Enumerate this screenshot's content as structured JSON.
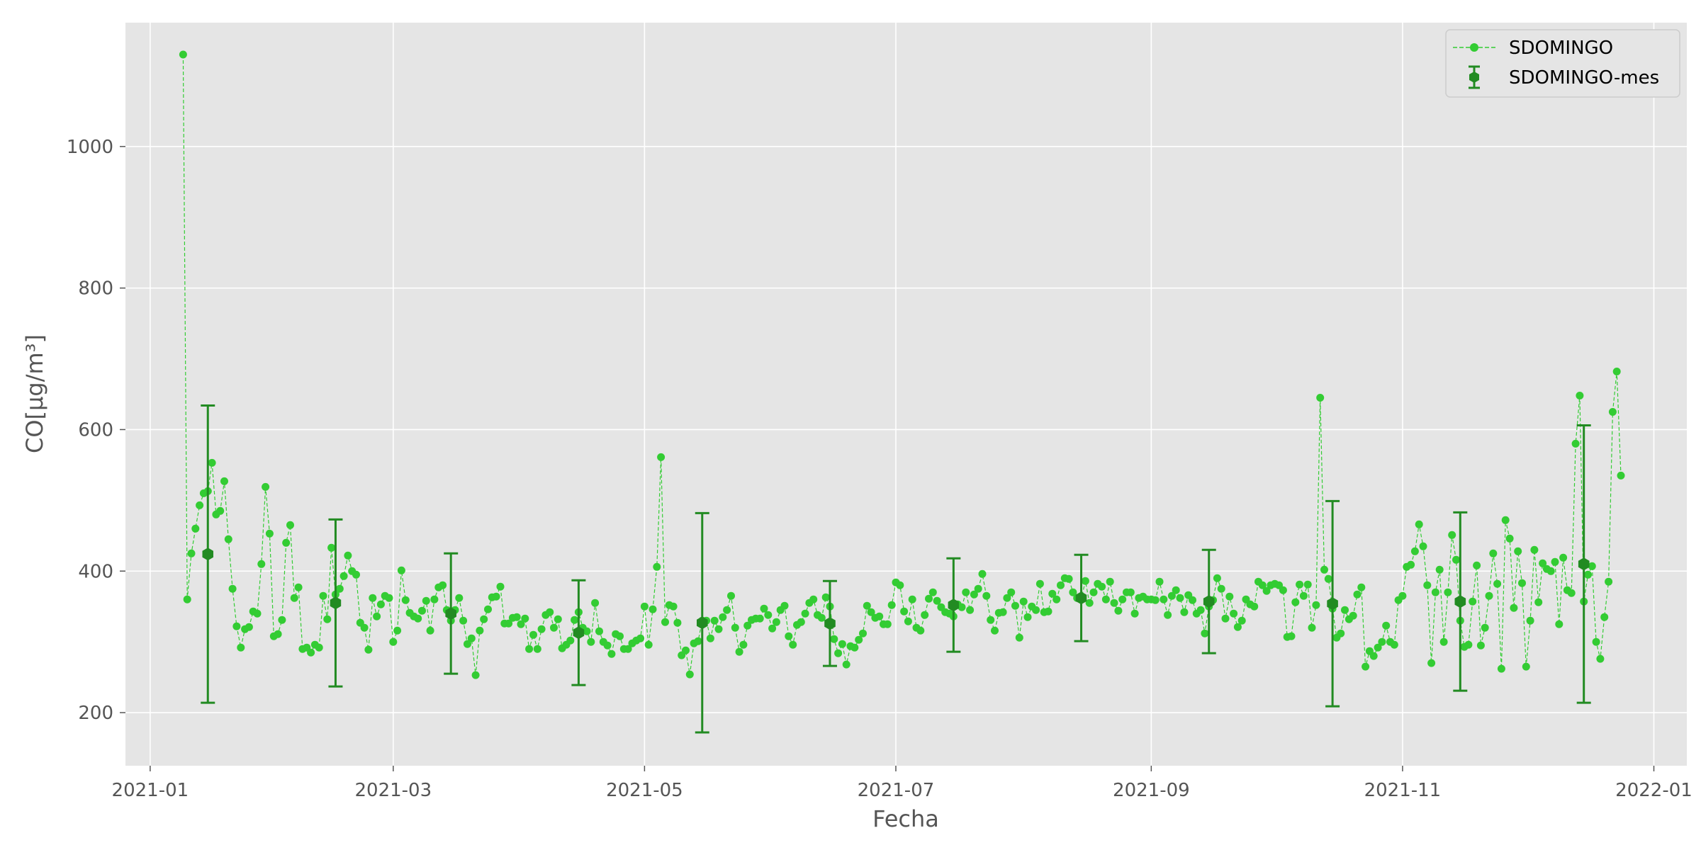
{
  "chart_data": {
    "type": "line",
    "title": "",
    "xlabel": "Fecha",
    "ylabel": "CO[μg/m³]",
    "xlim": [
      "2020-12-26",
      "2022-01-09"
    ],
    "ylim": [
      125,
      1175
    ],
    "x_ticks": [
      "2021-01",
      "2021-03",
      "2021-05",
      "2021-07",
      "2021-09",
      "2021-11",
      "2022-01"
    ],
    "y_ticks": [
      200,
      400,
      600,
      800,
      1000
    ],
    "grid": true,
    "legend_position": "top-right",
    "colors": {
      "daily": "#33cc33",
      "monthly": "#228b22",
      "plot_bg": "#e5e5e5",
      "grid": "#ffffff"
    },
    "series": [
      {
        "name": "SDOMINGO",
        "style": "dashed-line-with-dots",
        "start_date": "2021-01-09",
        "values": [
          1130,
          360,
          425,
          460,
          493,
          510,
          513,
          553,
          480,
          485,
          527,
          445,
          375,
          322,
          292,
          318,
          321,
          343,
          340,
          410,
          519,
          453,
          308,
          311,
          331,
          440,
          465,
          362,
          377,
          290,
          292,
          285,
          296,
          292,
          365,
          332,
          433,
          367,
          375,
          393,
          422,
          400,
          395,
          327,
          320,
          289,
          362,
          336,
          353,
          365,
          362,
          300,
          316,
          401,
          359,
          341,
          336,
          333,
          344,
          358,
          316,
          360,
          377,
          380,
          345,
          330,
          345,
          362,
          330,
          297,
          305,
          253,
          316,
          332,
          346,
          363,
          364,
          378,
          326,
          326,
          334,
          335,
          325,
          333,
          290,
          310,
          290,
          318,
          338,
          342,
          320,
          332,
          291,
          296,
          302,
          331,
          342,
          320,
          315,
          300,
          355,
          315,
          300,
          295,
          283,
          311,
          308,
          290,
          290,
          298,
          302,
          305,
          350,
          296,
          346,
          406,
          561,
          328,
          352,
          350,
          327,
          281,
          288,
          254,
          298,
          301,
          330,
          330,
          305,
          330,
          318,
          335,
          345,
          365,
          320,
          286,
          296,
          323,
          331,
          333,
          333,
          347,
          338,
          319,
          328,
          345,
          351,
          308,
          296,
          324,
          328,
          340,
          355,
          360,
          338,
          334,
          363,
          350,
          304,
          284,
          297,
          268,
          294,
          292,
          303,
          312,
          351,
          342,
          334,
          336,
          325,
          325,
          352,
          384,
          380,
          343,
          329,
          360,
          320,
          316,
          338,
          361,
          370,
          358,
          349,
          342,
          340,
          336,
          353,
          349,
          370,
          345,
          367,
          375,
          396,
          365,
          331,
          316,
          341,
          342,
          362,
          370,
          351,
          306,
          357,
          335,
          350,
          345,
          382,
          342,
          343,
          368,
          360,
          380,
          390,
          389,
          370,
          362,
          360,
          386,
          355,
          370,
          382,
          378,
          360,
          385,
          355,
          344,
          360,
          370,
          370,
          340,
          362,
          364,
          360,
          360,
          359,
          385,
          360,
          338,
          365,
          373,
          362,
          342,
          366,
          359,
          340,
          345,
          312,
          350,
          359,
          390,
          375,
          333,
          364,
          340,
          321,
          330,
          360,
          353,
          350,
          385,
          380,
          372,
          380,
          382,
          380,
          373,
          307,
          308,
          356,
          381,
          365,
          381,
          320,
          352,
          645,
          402,
          389,
          347,
          306,
          312,
          345,
          332,
          337,
          367,
          377,
          265,
          287,
          280,
          292,
          300,
          323,
          300,
          296,
          359,
          365,
          406,
          409,
          428,
          466,
          435,
          380,
          270,
          370,
          402,
          300,
          370,
          451,
          416,
          330,
          293,
          296,
          357,
          408,
          295,
          320,
          365,
          425,
          382,
          262,
          472,
          446,
          348,
          428,
          383,
          265,
          330,
          430,
          356,
          411,
          403,
          400,
          413,
          325,
          419,
          373,
          369,
          580,
          648,
          357,
          395,
          407,
          300,
          276,
          335,
          385,
          625,
          682,
          535
        ]
      },
      {
        "name": "SDOMINGO-mes",
        "style": "hexagon-with-errorbars",
        "dates": [
          "2021-01-15",
          "2021-02-15",
          "2021-03-15",
          "2021-04-15",
          "2021-05-15",
          "2021-06-15",
          "2021-07-15",
          "2021-08-15",
          "2021-09-15",
          "2021-10-15",
          "2021-11-15",
          "2021-12-15"
        ],
        "values": [
          424,
          355,
          340,
          313,
          327,
          326,
          352,
          362,
          357,
          354,
          357,
          410
        ],
        "errors": [
          210,
          118,
          85,
          74,
          155,
          60,
          66,
          61,
          73,
          145,
          126,
          196
        ]
      }
    ]
  }
}
